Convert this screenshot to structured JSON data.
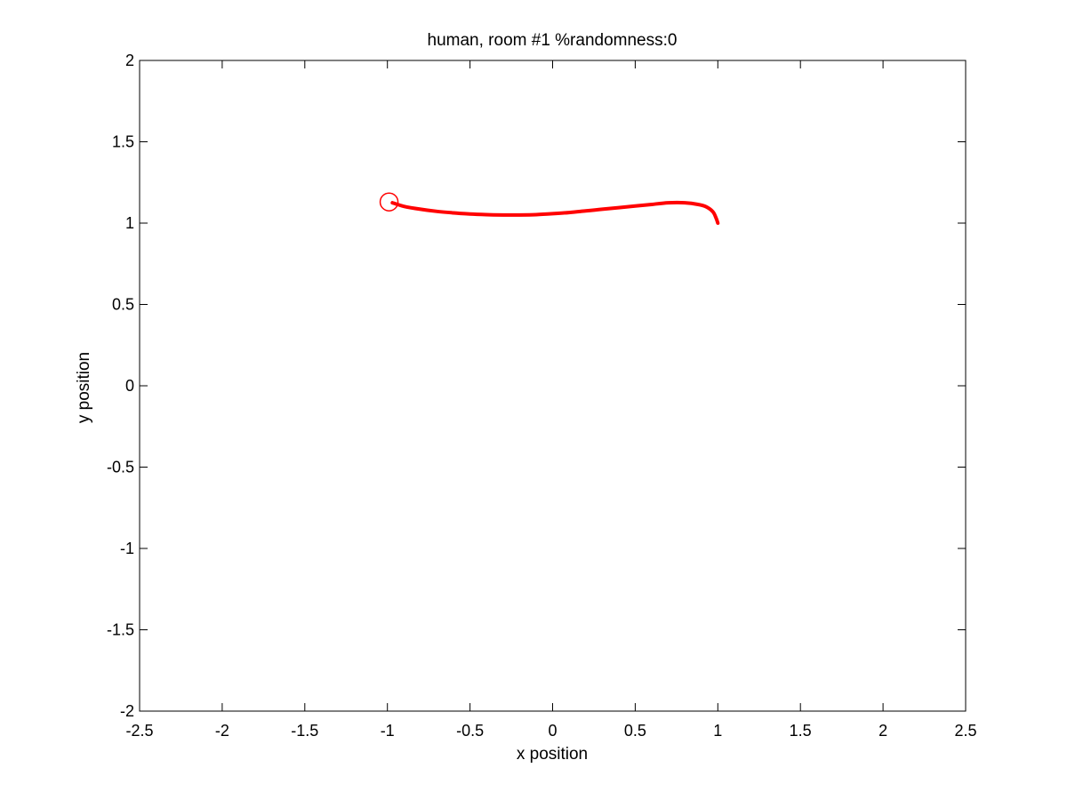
{
  "chart_data": {
    "type": "line",
    "title": "human, room #1 %randomness:0",
    "xlabel": "x position",
    "ylabel": "y position",
    "xlim": [
      -2.5,
      2.5
    ],
    "ylim": [
      -2,
      2
    ],
    "xticks": [
      -2.5,
      -2,
      -1.5,
      -1,
      -0.5,
      0,
      0.5,
      1,
      1.5,
      2,
      2.5
    ],
    "yticks": [
      -2,
      -1.5,
      -1,
      -0.5,
      0,
      0.5,
      1,
      1.5,
      2
    ],
    "xtick_labels": [
      "-2.5",
      "-2",
      "-1.5",
      "-1",
      "-0.5",
      "0",
      "0.5",
      "1",
      "1.5",
      "2",
      "2.5"
    ],
    "ytick_labels": [
      "-2",
      "-1.5",
      "-1",
      "-0.5",
      "0",
      "0.5",
      "1",
      "1.5",
      "2"
    ],
    "grid": false,
    "line_color": "#ff0000",
    "series": [
      {
        "x": [
          1.0,
          0.99,
          0.97,
          0.93,
          0.88,
          0.8,
          0.7,
          0.6,
          0.5,
          0.4,
          0.3,
          0.2,
          0.1,
          0.0,
          -0.1,
          -0.2,
          -0.3,
          -0.4,
          -0.5,
          -0.6,
          -0.7,
          -0.8,
          -0.9,
          -0.97
        ],
        "y": [
          1.0,
          1.03,
          1.07,
          1.1,
          1.115,
          1.125,
          1.125,
          1.115,
          1.105,
          1.095,
          1.085,
          1.075,
          1.065,
          1.058,
          1.052,
          1.05,
          1.05,
          1.052,
          1.056,
          1.063,
          1.072,
          1.085,
          1.103,
          1.125
        ]
      }
    ],
    "start_marker": {
      "shape": "circle",
      "x": -0.99,
      "y": 1.13
    }
  }
}
